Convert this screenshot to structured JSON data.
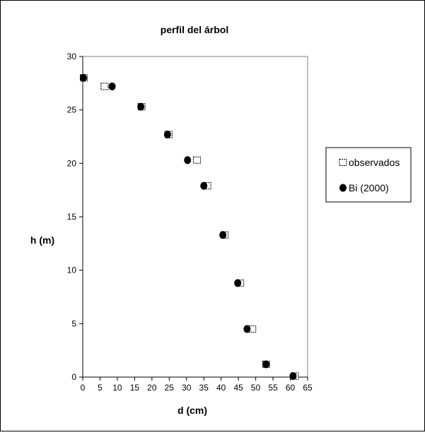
{
  "chart_data": {
    "type": "scatter",
    "title": "perfil del árbol",
    "xlabel": "d (cm)",
    "ylabel": "h (m)",
    "xlim": [
      0,
      65
    ],
    "ylim": [
      0,
      30
    ],
    "x_ticks": [
      0,
      5,
      10,
      15,
      20,
      25,
      30,
      35,
      40,
      45,
      50,
      55,
      60,
      65
    ],
    "y_ticks": [
      0,
      5,
      10,
      15,
      20,
      25,
      30
    ],
    "grid": false,
    "legend_position": "right",
    "series": [
      {
        "name": "observados",
        "marker": "open-square",
        "color": "#000000",
        "points": [
          [
            0.3,
            28.0
          ],
          [
            6.3,
            27.2
          ],
          [
            17.0,
            25.3
          ],
          [
            24.8,
            22.7
          ],
          [
            33.0,
            20.3
          ],
          [
            36.0,
            17.9
          ],
          [
            41.0,
            13.3
          ],
          [
            45.5,
            8.8
          ],
          [
            49.0,
            4.5
          ],
          [
            53.0,
            1.2
          ],
          [
            61.3,
            0.1
          ]
        ]
      },
      {
        "name": "Bi (2000)",
        "marker": "filled-circle",
        "color": "#000000",
        "points": [
          [
            0.2,
            28.0
          ],
          [
            8.5,
            27.2
          ],
          [
            16.8,
            25.3
          ],
          [
            24.5,
            22.7
          ],
          [
            30.3,
            20.3
          ],
          [
            35.0,
            17.9
          ],
          [
            40.5,
            13.3
          ],
          [
            44.8,
            8.8
          ],
          [
            47.5,
            4.5
          ],
          [
            53.0,
            1.2
          ],
          [
            60.8,
            0.1
          ]
        ]
      }
    ]
  }
}
